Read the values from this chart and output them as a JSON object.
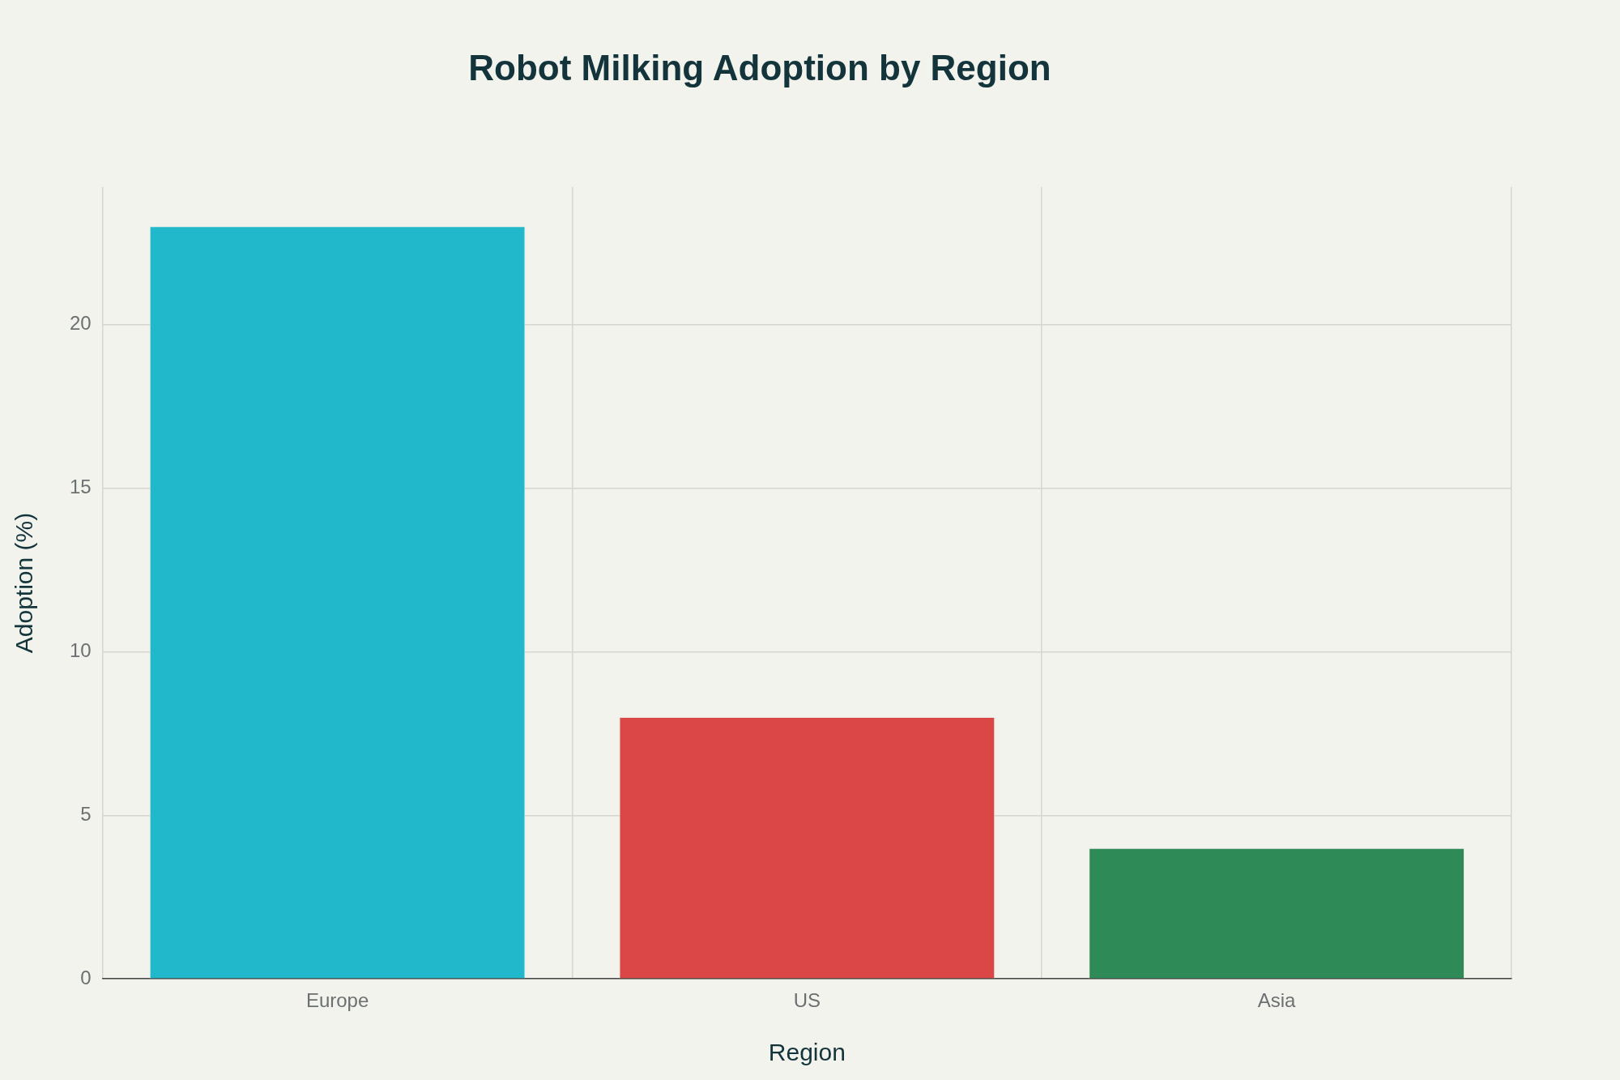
{
  "chart_data": {
    "type": "bar",
    "title": "Robot Milking Adoption by Region",
    "xlabel": "Region",
    "ylabel": "Adoption (%)",
    "categories": [
      "Europe",
      "US",
      "Asia"
    ],
    "values": [
      23,
      8,
      4
    ],
    "colors": [
      "#21b8cc",
      "#db4646",
      "#2e8a57"
    ],
    "ylim": [
      0,
      24.2
    ],
    "yticks": [
      0,
      5,
      10,
      15,
      20
    ],
    "grid": true
  }
}
